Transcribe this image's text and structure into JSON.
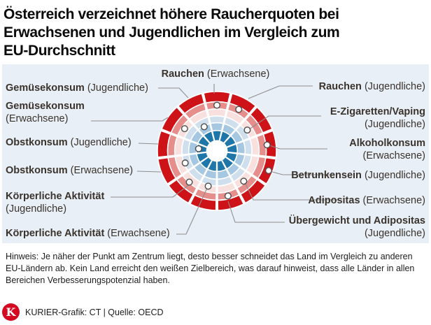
{
  "header": {
    "title_lines": [
      "Österreich verzeichnet höhere Raucherquoten bei",
      "Erwachsenen und Jugendlichen im Vergleich zum",
      "EU-Durchschnitt"
    ]
  },
  "chart_data": {
    "type": "radial-target",
    "description": "Zielscheiben-Diagramm: Position des Punktes pro Sektor = Abstand vom Zentrum (0 = Zentrum/bestes Ergebnis, 1 = äußerer Rand/schlechtestes Ergebnis im EU-Vergleich). Sektoren im Uhrzeigersinn, beginnend oben.",
    "center_color": "#ffffff",
    "rings": [
      {
        "ring": 1,
        "color": "#1e76a9",
        "from": 0.17,
        "to": 0.345
      },
      {
        "ring": 2,
        "color": "#a6c7e2",
        "from": 0.345,
        "to": 0.475
      },
      {
        "ring": 3,
        "color": "#cfdfee",
        "from": 0.475,
        "to": 0.59
      },
      {
        "ring": 4,
        "color": "#f8e0de",
        "from": 0.59,
        "to": 0.71
      },
      {
        "ring": 5,
        "color": "#e68e8b",
        "from": 0.71,
        "to": 0.83
      },
      {
        "ring": 6,
        "color": "#cd1318",
        "from": 0.83,
        "to": 1.0
      }
    ],
    "categories": [
      {
        "label": "Rauchen",
        "cohort": "Erwachsene",
        "distance": 0.77
      },
      {
        "label": "Rauchen",
        "cohort": "Jugendliche",
        "distance": 0.79
      },
      {
        "label": "E-Zigaretten/Vaping",
        "cohort": "Jugendliche",
        "distance": 0.62
      },
      {
        "label": "Alkoholkonsum",
        "cohort": "Erwachsene",
        "distance": 0.85
      },
      {
        "label": "Betrunkensein",
        "cohort": "Jugendliche",
        "distance": 0.93
      },
      {
        "label": "Adipositas",
        "cohort": "Erwachsene",
        "distance": 0.68
      },
      {
        "label": "Übergewicht und Adipositas",
        "cohort": "Jugendliche",
        "distance": 0.78
      },
      {
        "label": "Körperliche Aktivität",
        "cohort": "Erwachsene",
        "distance": 0.61
      },
      {
        "label": "Körperliche Aktivität",
        "cohort": "Jugendliche",
        "distance": 0.7
      },
      {
        "label": "Obstkonsum",
        "cohort": "Erwachsene",
        "distance": 0.57
      },
      {
        "label": "Obstkonsum",
        "cohort": "Jugendliche",
        "distance": 0.31
      },
      {
        "label": "Gemüsekonsum",
        "cohort": "Erwachsene",
        "distance": 0.66
      },
      {
        "label": "Gemüsekonsum",
        "cohort": "Jugendliche",
        "distance": 0.46
      }
    ]
  },
  "note": {
    "text": "Hinweis: Je näher der Punkt am Zentrum liegt, desto besser schneidet das Land im Vergleich zu anderen EU-Ländern ab. Kein Land erreicht den weißen Zielbereich, was darauf hinweist, dass alle Länder in allen Bereichen Verbesserungspotenzial haben."
  },
  "footer": {
    "logo_letter": "K",
    "credit": "KURIER-Grafik: CT  | Quelle: OECD"
  },
  "colors": {
    "panel_background": "#e9eff6",
    "leader_line": "#8e8e8e",
    "dot_fill": "#ffffff",
    "dot_stroke": "#4b4b4b",
    "tile_gap": "#ffffff",
    "kurier_red": "#d30a21",
    "label_text": "#3a332c"
  }
}
